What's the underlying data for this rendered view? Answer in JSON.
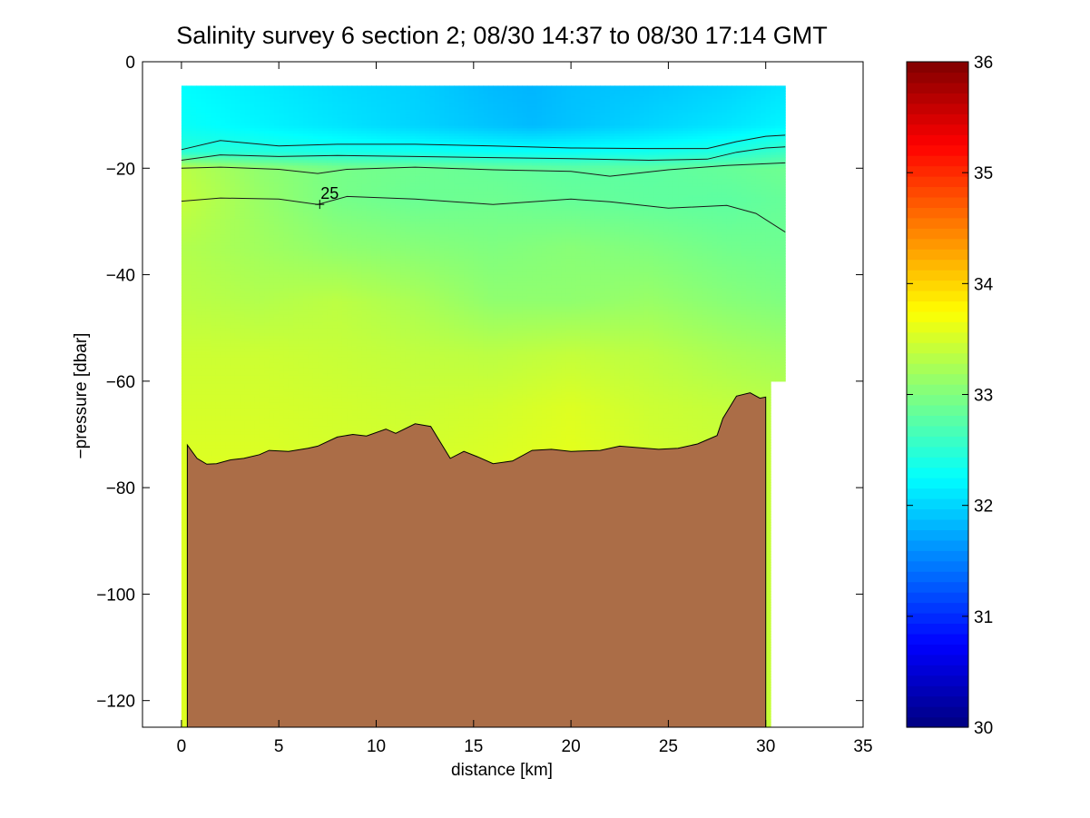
{
  "chart_data": {
    "type": "heatmap",
    "title": "Salinity survey 6 section 2; 08/30 14:37 to 08/30 17:14 GMT",
    "xlabel": "distance [km]",
    "ylabel": "−pressure [dbar]",
    "xlim": [
      -2,
      35
    ],
    "ylim": [
      -125,
      0
    ],
    "x_ticks": [
      0,
      5,
      10,
      15,
      20,
      25,
      30,
      35
    ],
    "y_ticks": [
      0,
      -20,
      -40,
      -60,
      -80,
      -100,
      -120
    ],
    "y_tick_labels": [
      "0",
      "−20",
      "−40",
      "−60",
      "−80",
      "−100",
      "−120"
    ],
    "colorbar": {
      "range": [
        30,
        36
      ],
      "ticks": [
        30,
        31,
        32,
        33,
        34,
        35,
        36
      ],
      "colormap": "jet"
    },
    "colors": {
      "bottom": "#ab6d47",
      "background": "#ffffff"
    },
    "data_region": {
      "x_range": [
        0,
        31
      ],
      "top_depth": -4.5,
      "right_edge_depth": -60
    },
    "salinity_layers": [
      {
        "depth": -5,
        "x": [
          0,
          4,
          8,
          12,
          16,
          18,
          20,
          24,
          28,
          31
        ],
        "values": [
          32.25,
          32.15,
          32.05,
          31.98,
          31.85,
          31.82,
          31.88,
          31.92,
          32.0,
          32.1
        ]
      },
      {
        "depth": -12,
        "x": [
          0,
          4,
          8,
          12,
          16,
          18,
          20,
          24,
          28,
          31
        ],
        "values": [
          32.3,
          32.2,
          32.1,
          32.0,
          31.9,
          31.85,
          31.9,
          32.0,
          32.1,
          32.2
        ]
      },
      {
        "depth": -17,
        "x": [
          0,
          4,
          8,
          12,
          16,
          20,
          24,
          28,
          31
        ],
        "values": [
          32.5,
          32.45,
          32.4,
          32.35,
          32.3,
          32.3,
          32.35,
          32.45,
          32.6
        ]
      },
      {
        "depth": -20,
        "x": [
          0,
          4,
          8,
          12,
          16,
          20,
          24,
          28,
          31
        ],
        "values": [
          33.35,
          33.1,
          32.95,
          32.9,
          32.85,
          32.8,
          32.8,
          32.85,
          32.9
        ]
      },
      {
        "depth": -26,
        "x": [
          0,
          4,
          8,
          12,
          16,
          20,
          24,
          28,
          31
        ],
        "values": [
          33.4,
          33.15,
          32.95,
          32.88,
          32.9,
          32.85,
          32.82,
          32.8,
          32.85
        ]
      },
      {
        "depth": -35,
        "x": [
          0,
          4,
          8,
          12,
          16,
          20,
          24,
          28,
          31
        ],
        "values": [
          33.3,
          33.2,
          33.1,
          33.05,
          33.0,
          33.05,
          33.0,
          32.92,
          32.9
        ]
      },
      {
        "depth": -45,
        "x": [
          0,
          4,
          8,
          12,
          16,
          20,
          24,
          28,
          31
        ],
        "values": [
          33.35,
          33.3,
          33.35,
          33.25,
          33.1,
          33.1,
          33.15,
          33.05,
          33.0
        ]
      },
      {
        "depth": -55,
        "x": [
          0,
          4,
          8,
          12,
          16,
          20,
          24,
          28,
          31
        ],
        "values": [
          33.45,
          33.45,
          33.42,
          33.38,
          33.35,
          33.4,
          33.35,
          33.25,
          33.2
        ]
      },
      {
        "depth": -65,
        "x": [
          0,
          4,
          8,
          12,
          16,
          20,
          24,
          28,
          31
        ],
        "values": [
          33.5,
          33.5,
          33.48,
          33.45,
          33.48,
          33.55,
          33.45,
          33.4,
          33.35
        ]
      },
      {
        "depth": -76,
        "x": [
          0,
          4,
          8,
          12,
          16,
          20,
          24,
          28,
          31
        ],
        "values": [
          33.55,
          33.55,
          33.5,
          33.5,
          33.55,
          33.6,
          33.5,
          33.45,
          33.4
        ]
      }
    ],
    "contour_lines": [
      {
        "x": [
          0,
          2,
          5,
          8,
          12,
          16,
          20,
          24,
          27,
          28.5,
          30,
          31
        ],
        "depth": [
          -16.5,
          -14.8,
          -15.8,
          -15.5,
          -15.5,
          -15.8,
          -16.2,
          -16.3,
          -16.3,
          -15.0,
          -14.0,
          -13.8
        ]
      },
      {
        "x": [
          0,
          2,
          5,
          8,
          12,
          16,
          20,
          24,
          27,
          28.5,
          30,
          31
        ],
        "depth": [
          -18.5,
          -17.5,
          -17.8,
          -17.6,
          -17.8,
          -18.0,
          -18.2,
          -18.5,
          -18.3,
          -17.0,
          -16.2,
          -16.0
        ]
      },
      {
        "x": [
          0,
          2,
          5,
          7,
          8.5,
          12,
          16,
          20,
          22,
          25,
          28,
          31
        ],
        "depth": [
          -20.0,
          -19.8,
          -20.2,
          -21.0,
          -20.2,
          -19.8,
          -20.3,
          -20.6,
          -21.5,
          -20.3,
          -19.5,
          -19.0
        ]
      },
      {
        "x": [
          0,
          2,
          5,
          7,
          8.5,
          12,
          16,
          20,
          22,
          25,
          28,
          29.5,
          31
        ],
        "depth": [
          -26.2,
          -25.6,
          -25.8,
          -26.8,
          -25.3,
          -25.8,
          -26.8,
          -25.8,
          -26.3,
          -27.5,
          -27.0,
          -28.5,
          -32.0
        ]
      }
    ],
    "contour_label": {
      "text": "25",
      "x": 7.1,
      "depth": -26.8
    },
    "bottom_profile": {
      "x": [
        0.3,
        0.8,
        1.3,
        1.8,
        2.5,
        3.2,
        4.0,
        4.5,
        5.5,
        6.5,
        7.0,
        8.0,
        8.8,
        9.5,
        10.5,
        11.0,
        12.0,
        12.8,
        13.3,
        13.8,
        14.5,
        15.2,
        16.0,
        17.0,
        18.0,
        19.0,
        20.0,
        21.5,
        22.5,
        23.5,
        24.5,
        25.5,
        26.5,
        27.5,
        27.8,
        28.5,
        29.2,
        29.7,
        30.0
      ],
      "depth": [
        -72,
        -74.5,
        -75.6,
        -75.5,
        -74.8,
        -74.5,
        -73.8,
        -73.0,
        -73.2,
        -72.6,
        -72.2,
        -70.5,
        -70.0,
        -70.3,
        -69.0,
        -69.8,
        -68.0,
        -68.5,
        -71.5,
        -74.5,
        -73.2,
        -74.2,
        -75.5,
        -75.0,
        -73.0,
        -72.8,
        -73.2,
        -73.0,
        -72.2,
        -72.5,
        -72.8,
        -72.6,
        -71.8,
        -70.2,
        -67.0,
        -62.8,
        -62.2,
        -63.2,
        -63.0
      ]
    }
  }
}
